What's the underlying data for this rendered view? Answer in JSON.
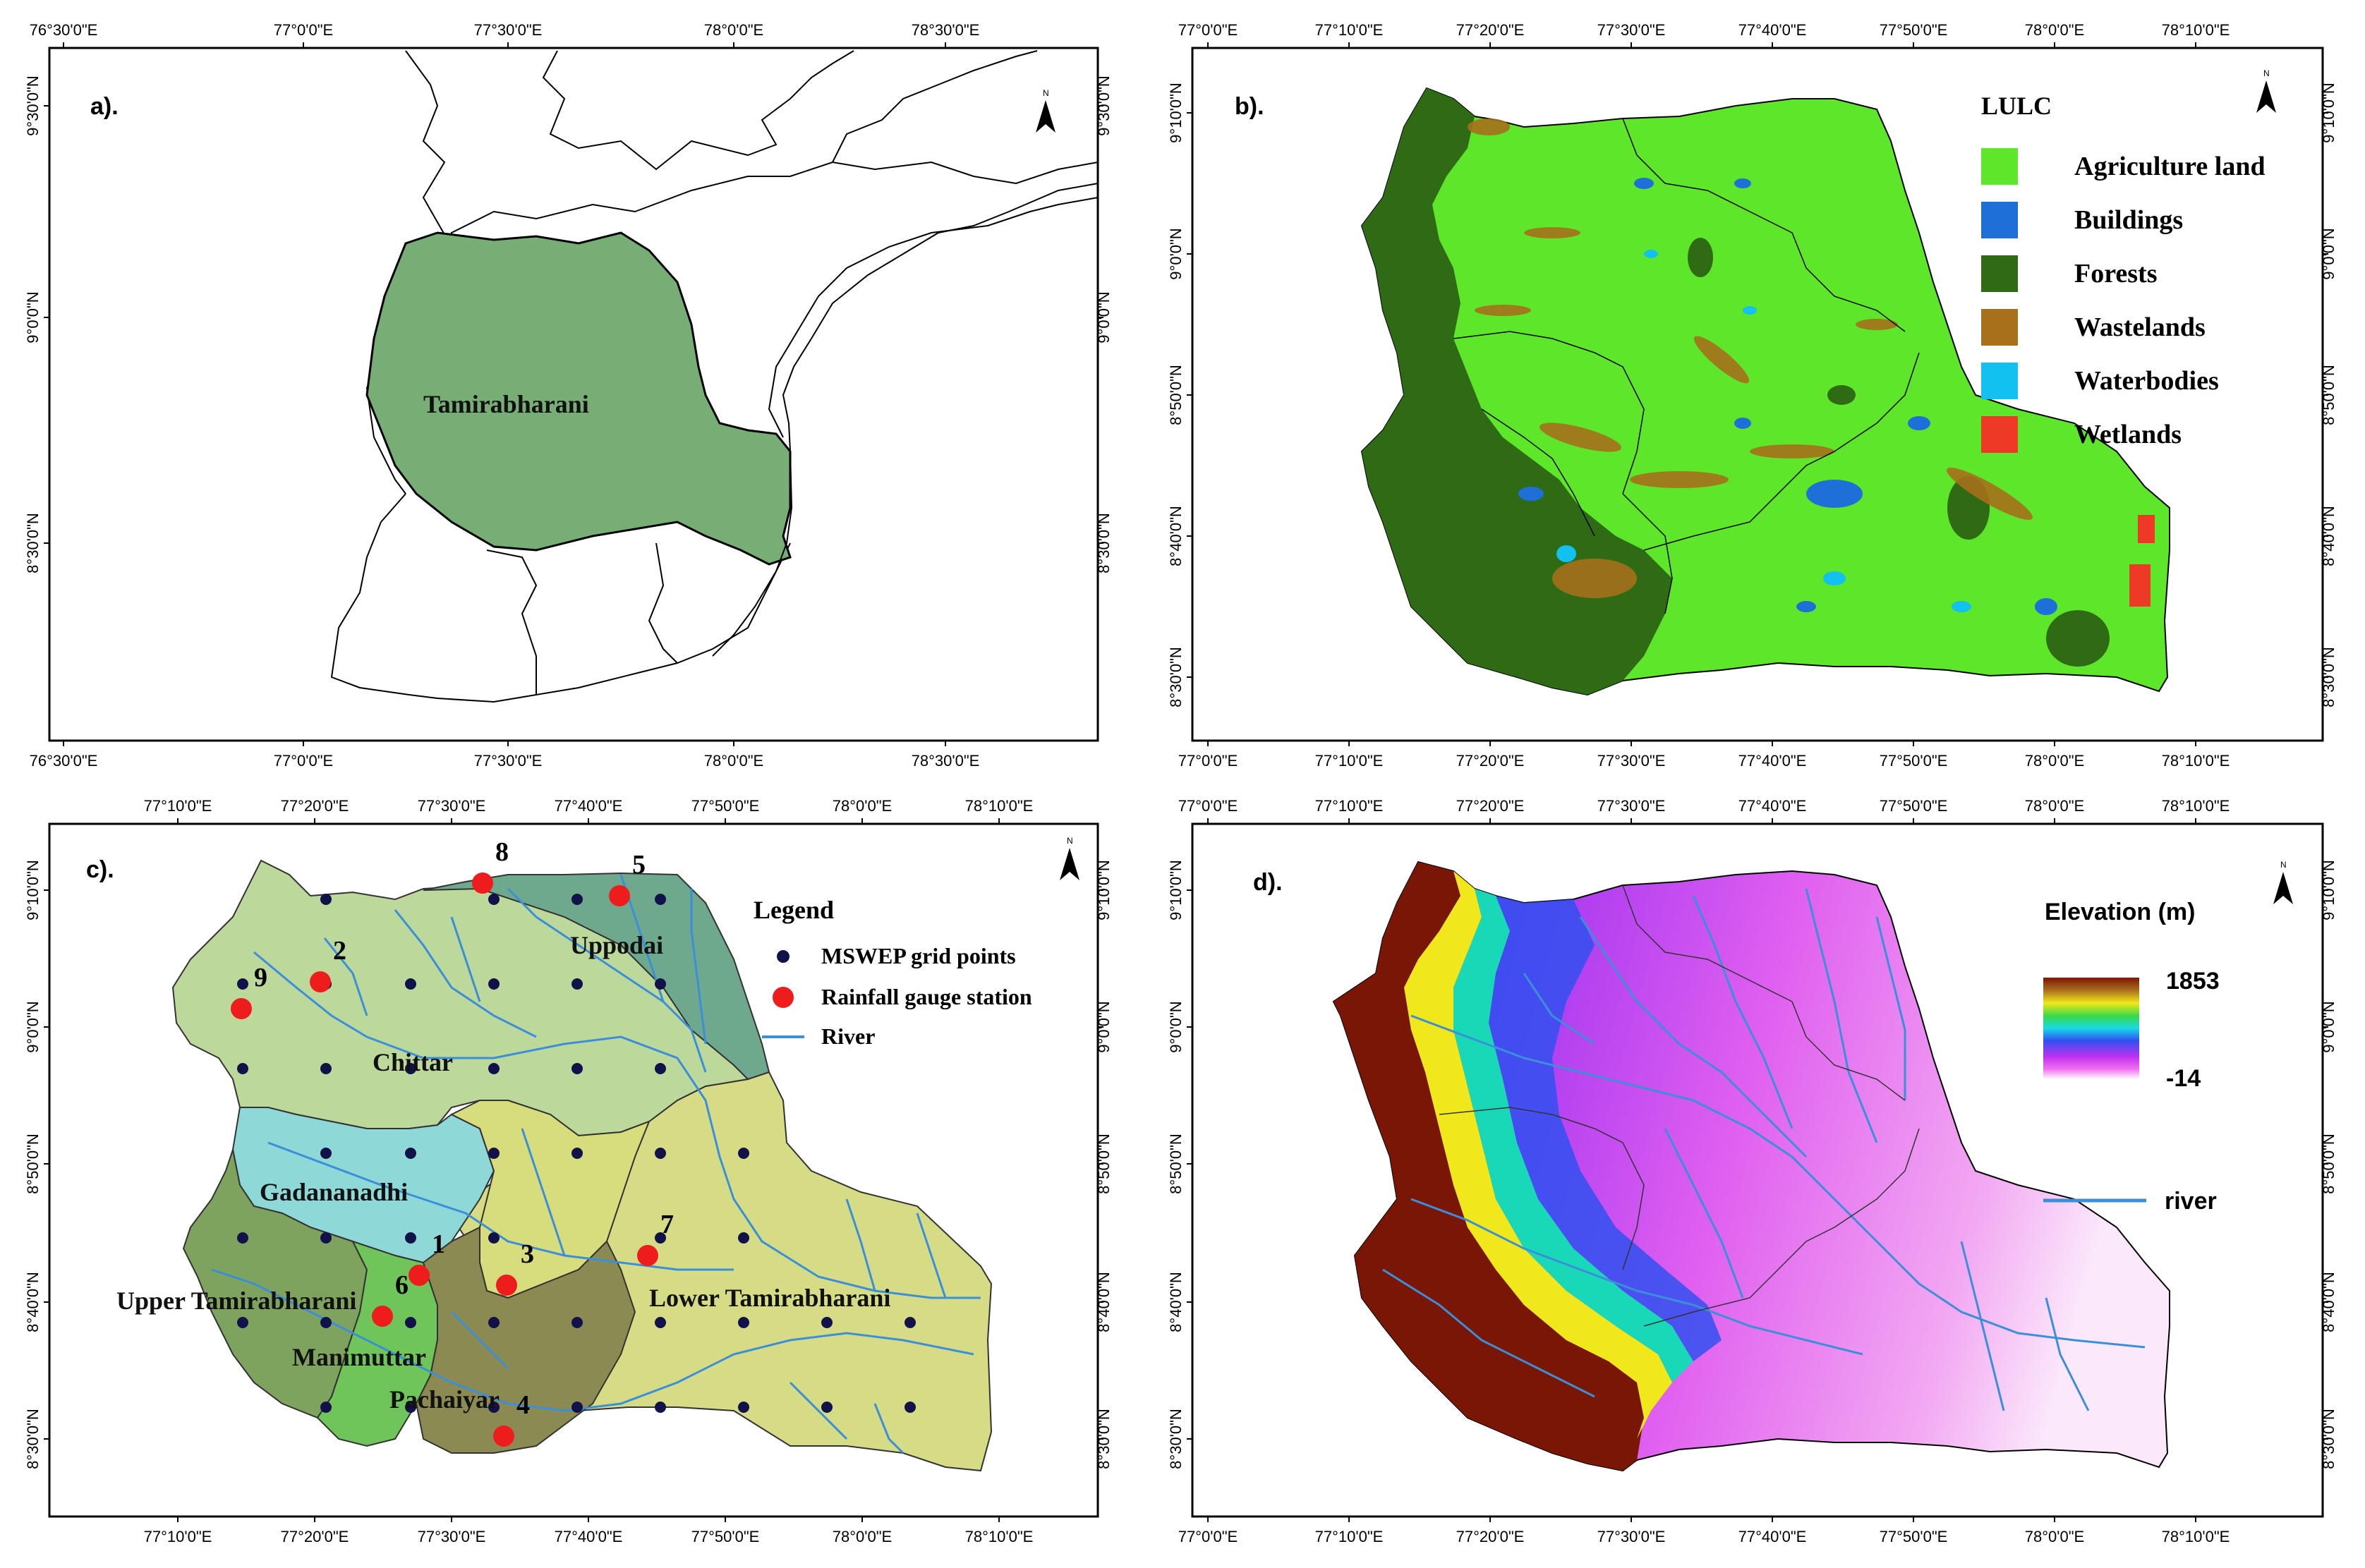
{
  "panels": {
    "a": {
      "label": "a).",
      "region_label": "Tamirabharani",
      "north": "N",
      "top_ticks": [
        "76°30'0\"E",
        "77°0'0\"E",
        "77°30'0\"E",
        "78°0'0\"E",
        "78°30'0\"E"
      ],
      "bottom_ticks": [
        "76°30'0\"E",
        "77°0'0\"E",
        "77°30'0\"E",
        "78°0'0\"E",
        "78°30'0\"E"
      ],
      "left_ticks": [
        "9°30'0\"N",
        "9°0'0\"N",
        "8°30'0\"N"
      ],
      "right_ticks": [
        "9°30'0\"N",
        "9°0'0\"N",
        "8°30'0\"N"
      ]
    },
    "b": {
      "label": "b).",
      "north": "N",
      "legend_title": "LULC",
      "legend": [
        {
          "label": "Agriculture land",
          "color": "#5ee62a"
        },
        {
          "label": "Buildings",
          "color": "#1f6fd8"
        },
        {
          "label": "Forests",
          "color": "#2e6b14"
        },
        {
          "label": "Wastelands",
          "color": "#a8701a"
        },
        {
          "label": "Waterbodies",
          "color": "#12c1ef"
        },
        {
          "label": "Wetlands",
          "color": "#ee3a24"
        }
      ],
      "top_ticks": [
        "77°0'0\"E",
        "77°10'0\"E",
        "77°20'0\"E",
        "77°30'0\"E",
        "77°40'0\"E",
        "77°50'0\"E",
        "78°0'0\"E",
        "78°10'0\"E"
      ],
      "bottom_ticks": [
        "77°0'0\"E",
        "77°10'0\"E",
        "77°20'0\"E",
        "77°30'0\"E",
        "77°40'0\"E",
        "77°50'0\"E",
        "78°0'0\"E",
        "78°10'0\"E"
      ],
      "left_ticks": [
        "9°10'0\"N",
        "9°0'0\"N",
        "8°50'0\"N",
        "8°40'0\"N",
        "8°30'0\"N"
      ],
      "right_ticks": [
        "9°10'0\"N",
        "9°0'0\"N",
        "8°50'0\"N",
        "8°40'0\"N",
        "8°30'0\"N"
      ]
    },
    "c": {
      "label": "c).",
      "north": "N",
      "legend_title": "Legend",
      "legend": [
        {
          "label": "MSWEP grid points",
          "color": "#12124a"
        },
        {
          "label": "Rainfall gauge station",
          "color": "#ee1c1c"
        },
        {
          "label": "River",
          "color": "#3b8fd9"
        }
      ],
      "subbasins": [
        {
          "name": "Uppodai",
          "color": "#6fa98d"
        },
        {
          "name": "Chittar",
          "color": "#bcd89a"
        },
        {
          "name": "Gadananadhi",
          "color": "#8fd8d8"
        },
        {
          "name": "Upper Tamirabharani",
          "color": "#7ea35e"
        },
        {
          "name": "Manimuttar",
          "color": "#6fc45a"
        },
        {
          "name": "Pachaiyar",
          "color": "#8a8a52"
        },
        {
          "name": "Lower Tamirabharani",
          "color": "#d6dc86"
        }
      ],
      "stations": [
        "1",
        "2",
        "3",
        "4",
        "5",
        "6",
        "7",
        "8",
        "9"
      ],
      "top_ticks": [
        "77°10'0\"E",
        "77°20'0\"E",
        "77°30'0\"E",
        "77°40'0\"E",
        "77°50'0\"E",
        "78°0'0\"E",
        "78°10'0\"E"
      ],
      "bottom_ticks": [
        "77°10'0\"E",
        "77°20'0\"E",
        "77°30'0\"E",
        "77°40'0\"E",
        "77°50'0\"E",
        "78°0'0\"E",
        "78°10'0\"E"
      ],
      "left_ticks": [
        "9°10'0\"N",
        "9°0'0\"N",
        "8°50'0\"N",
        "8°40'0\"N",
        "8°30'0\"N"
      ],
      "right_ticks": [
        "9°10'0\"N",
        "9°0'0\"N",
        "8°50'0\"N",
        "8°40'0\"N",
        "8°30'0\"N"
      ]
    },
    "d": {
      "label": "d).",
      "north": "N",
      "legend_title": "Elevation (m)",
      "elev_max": "1853",
      "elev_min": "-14",
      "river_label": "river",
      "top_ticks": [
        "77°0'0\"E",
        "77°10'0\"E",
        "77°20'0\"E",
        "77°30'0\"E",
        "77°40'0\"E",
        "77°50'0\"E",
        "78°0'0\"E",
        "78°10'0\"E"
      ],
      "bottom_ticks": [
        "77°0'0\"E",
        "77°10'0\"E",
        "77°20'0\"E",
        "77°30'0\"E",
        "77°40'0\"E",
        "77°50'0\"E",
        "78°0'0\"E",
        "78°10'0\"E"
      ],
      "left_ticks": [
        "9°10'0\"N",
        "9°0'0\"N",
        "8°50'0\"N",
        "8°40'0\"N",
        "8°30'0\"N"
      ],
      "right_ticks": [
        "9°10'0\"N",
        "9°0'0\"N",
        "8°50'0\"N",
        "8°40'0\"N",
        "8°30'0\"N"
      ]
    }
  }
}
